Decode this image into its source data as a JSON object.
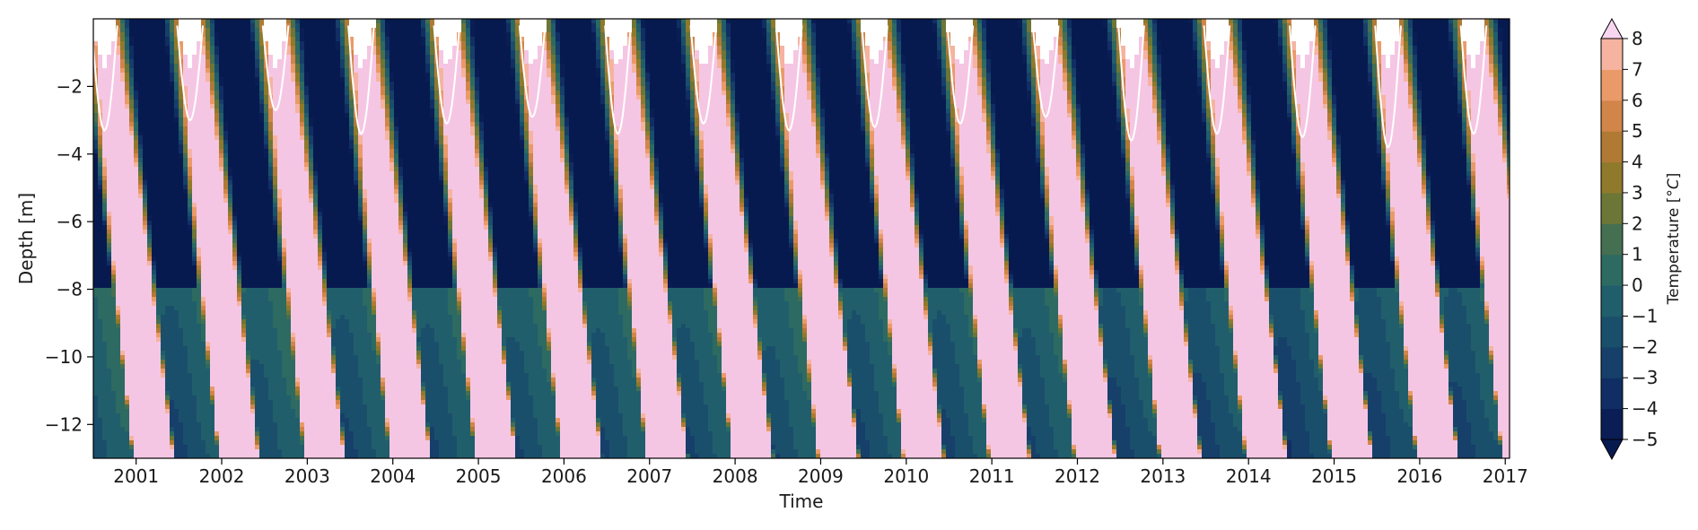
{
  "chart_data": {
    "type": "heatmap",
    "subtype": "filled-contour",
    "xlabel": "Time",
    "ylabel": "Depth [m]",
    "xlim": [
      2000.5,
      2017.05
    ],
    "ylim": [
      -13.0,
      -0.0
    ],
    "x_ticks": [
      "2001",
      "2002",
      "2003",
      "2004",
      "2005",
      "2006",
      "2007",
      "2008",
      "2009",
      "2010",
      "2011",
      "2012",
      "2013",
      "2014",
      "2015",
      "2016",
      "2017"
    ],
    "y_ticks": [
      "−2",
      "−4",
      "−6",
      "−8",
      "−10",
      "−12"
    ],
    "colorbar": {
      "label": "Temperature [$^{\\circ}C$]",
      "ticks": [
        "8",
        "7",
        "6",
        "5",
        "4",
        "3",
        "2",
        "1",
        "0",
        "−1",
        "−2",
        "−3",
        "−4",
        "−5"
      ],
      "extend": "both",
      "levels": [
        -5,
        -4,
        -3,
        -2,
        -1,
        0,
        1,
        2,
        3,
        4,
        5,
        6,
        7,
        8
      ],
      "colors": [
        "#0a1d55",
        "#102e63",
        "#163f6a",
        "#1a4f6c",
        "#215e6b",
        "#2c6a62",
        "#456f51",
        "#6b7637",
        "#8f7a2b",
        "#b07a34",
        "#d18549",
        "#ea9a68",
        "#f5b3a0",
        "#f5c6e3"
      ],
      "under_color": "#071a50",
      "over_color": "#f9d6ef"
    },
    "seasons": [
      {
        "year": 2001,
        "thaw_depth": -3.3,
        "min_depth_cold": -5.6,
        "bottom_peak_depth": -11.6
      },
      {
        "year": 2002,
        "thaw_depth": -3.0,
        "min_depth_cold": -6.8,
        "bottom_peak_depth": -9.6
      },
      {
        "year": 2003,
        "thaw_depth": -2.7,
        "min_depth_cold": -7.9,
        "bottom_peak_depth": -11.2
      },
      {
        "year": 2004,
        "thaw_depth": -3.4,
        "min_depth_cold": -7.6,
        "bottom_peak_depth": -9.9
      },
      {
        "year": 2005,
        "thaw_depth": -3.1,
        "min_depth_cold": -6.9,
        "bottom_peak_depth": -10.2
      },
      {
        "year": 2006,
        "thaw_depth": -2.9,
        "min_depth_cold": -6.8,
        "bottom_peak_depth": -10.5
      },
      {
        "year": 2007,
        "thaw_depth": -3.4,
        "min_depth_cold": -6.8,
        "bottom_peak_depth": -10.3
      },
      {
        "year": 2008,
        "thaw_depth": -3.1,
        "min_depth_cold": -6.0,
        "bottom_peak_depth": -10.2
      },
      {
        "year": 2009,
        "thaw_depth": -3.3,
        "min_depth_cold": -7.6,
        "bottom_peak_depth": -10.8
      },
      {
        "year": 2010,
        "thaw_depth": -3.2,
        "min_depth_cold": -6.0,
        "bottom_peak_depth": -9.8
      },
      {
        "year": 2011,
        "thaw_depth": -3.1,
        "min_depth_cold": -6.8,
        "bottom_peak_depth": -9.8
      },
      {
        "year": 2012,
        "thaw_depth": -2.9,
        "min_depth_cold": -6.4,
        "bottom_peak_depth": -10.3
      },
      {
        "year": 2013,
        "thaw_depth": -3.6,
        "min_depth_cold": -6.0,
        "bottom_peak_depth": -8.9
      },
      {
        "year": 2014,
        "thaw_depth": -3.4,
        "min_depth_cold": -6.5,
        "bottom_peak_depth": -8.8
      },
      {
        "year": 2015,
        "thaw_depth": -3.5,
        "min_depth_cold": -5.5,
        "bottom_peak_depth": -7.7
      },
      {
        "year": 2016,
        "thaw_depth": -3.8,
        "min_depth_cold": -6.0,
        "bottom_peak_depth": -8.7
      },
      {
        "year": 2017,
        "thaw_depth": -3.4,
        "min_depth_cold": -5.6,
        "bottom_peak_depth": -9.0
      }
    ]
  }
}
